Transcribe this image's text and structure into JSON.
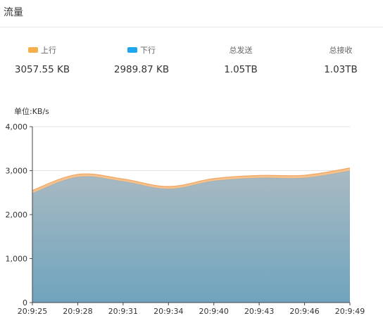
{
  "panel": {
    "title": "流量"
  },
  "stats": {
    "up": {
      "label": "上行",
      "value": "3057.55 KB",
      "color": "#f5b04d"
    },
    "down": {
      "label": "下行",
      "value": "2989.87 KB",
      "color": "#1ea7ef"
    },
    "sent": {
      "label": "总发送",
      "value": "1.05TB"
    },
    "received": {
      "label": "总接收",
      "value": "1.03TB"
    }
  },
  "chart_data": {
    "type": "area",
    "unit_label": "单位:KB/s",
    "x": [
      "20:9:25",
      "20:9:28",
      "20:9:31",
      "20:9:34",
      "20:9:40",
      "20:9:43",
      "20:9:46",
      "20:9:49"
    ],
    "y_ticks": [
      "0",
      "1,000",
      "2,000",
      "3,000",
      "4,000"
    ],
    "ylim": [
      0,
      4000
    ],
    "stacked": true,
    "grid": true,
    "series": [
      {
        "name": "下行",
        "values": [
          2480,
          2850,
          2750,
          2580,
          2760,
          2830,
          2830,
          2990
        ],
        "color": "#7aa8c0"
      },
      {
        "name": "上行",
        "values": [
          70,
          65,
          60,
          60,
          60,
          60,
          65,
          70
        ],
        "color": "#f5c08a"
      }
    ]
  }
}
